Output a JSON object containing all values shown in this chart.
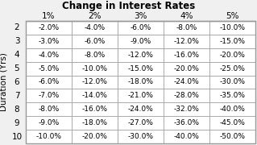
{
  "title": "Change in Interest Rates",
  "col_headers": [
    "1%",
    "2%",
    "3%",
    "4%",
    "5%"
  ],
  "row_headers": [
    "2",
    "3",
    "4",
    "5",
    "6",
    "7",
    "8",
    "9",
    "10"
  ],
  "ylabel": "Duration (Yrs)",
  "cell_data": [
    [
      "-2.0%",
      "-4.0%",
      "-6.0%",
      "-8.0%",
      "-10.0%"
    ],
    [
      "-3.0%",
      "-6.0%",
      "-9.0%",
      "-12.0%",
      "-15.0%"
    ],
    [
      "-4.0%",
      "-8.0%",
      "-12.0%",
      "-16.0%",
      "-20.0%"
    ],
    [
      "-5.0%",
      "-10.0%",
      "-15.0%",
      "-20.0%",
      "-25.0%"
    ],
    [
      "-6.0%",
      "-12.0%",
      "-18.0%",
      "-24.0%",
      "-30.0%"
    ],
    [
      "-7.0%",
      "-14.0%",
      "-21.0%",
      "-28.0%",
      "-35.0%"
    ],
    [
      "-8.0%",
      "-16.0%",
      "-24.0%",
      "-32.0%",
      "-40.0%"
    ],
    [
      "-9.0%",
      "-18.0%",
      "-27.0%",
      "-36.0%",
      "-45.0%"
    ],
    [
      "-10.0%",
      "-20.0%",
      "-30.0%",
      "-40.0%",
      "-50.0%"
    ]
  ],
  "bg_color": "#f0f0f0",
  "cell_bg": "#ffffff",
  "border_color": "#999999",
  "text_color": "#000000",
  "title_fontsize": 8.5,
  "cell_fontsize": 6.5,
  "header_fontsize": 7.5,
  "ylabel_fontsize": 7.5
}
